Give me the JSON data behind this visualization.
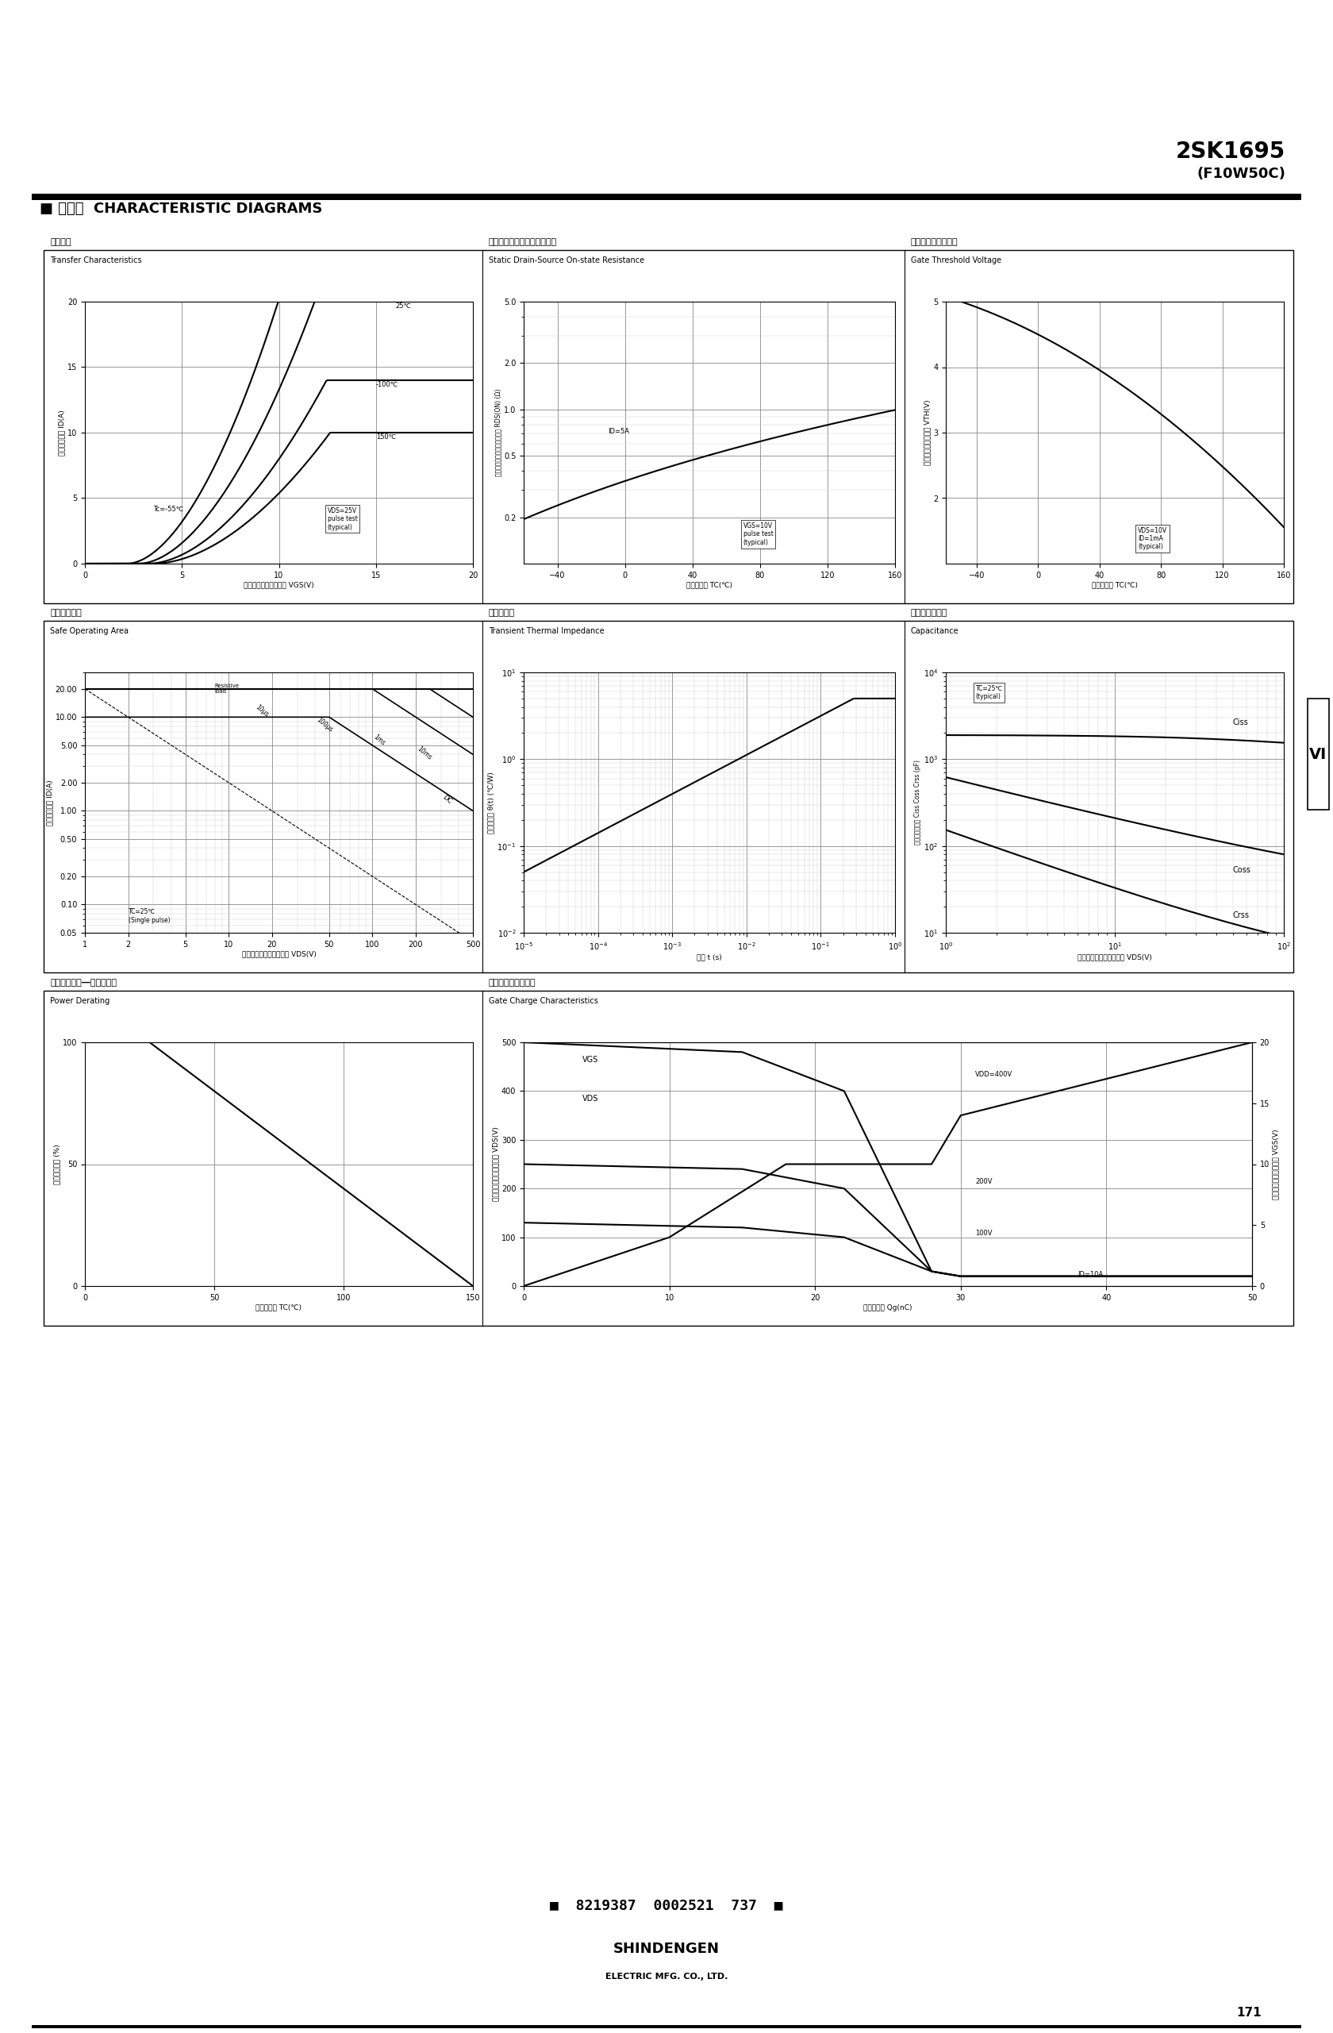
{
  "title_part": "2SK1695",
  "title_suffix": "(F10W50C)",
  "section_label": "  特性図  CHARACTERISTIC DIAGRAMS",
  "page_num": "171",
  "barcode_text": "  8219387 0002521 737  ",
  "company_name": "SHINDENGEN",
  "company_sub": "ELECTRIC MFG. CO., LTD.",
  "bg_color": "#ffffff",
  "row1_titles_jp": [
    "伝達特性",
    "ドレイン・ソース間オン抵抗",
    "ゲートしきい値電圧"
  ],
  "row1_titles_en": [
    "Transfer Characteristics",
    "Static Drain-Source On-state Resistance",
    "Gate Threshold Voltage"
  ],
  "row2_titles_jp": [
    "安全動作領域",
    "過渡熱抗抗",
    "キャパシタンス"
  ],
  "row2_titles_en": [
    "Safe Operating Area",
    "Transient Thermal Impedance",
    "Capacitance"
  ],
  "row3_titles_jp": [
    "全損失減少率―ケース温度",
    "ゲートチャージ特性"
  ],
  "row3_titles_en": [
    "Power Derating",
    "Gate Charge Characteristics"
  ]
}
